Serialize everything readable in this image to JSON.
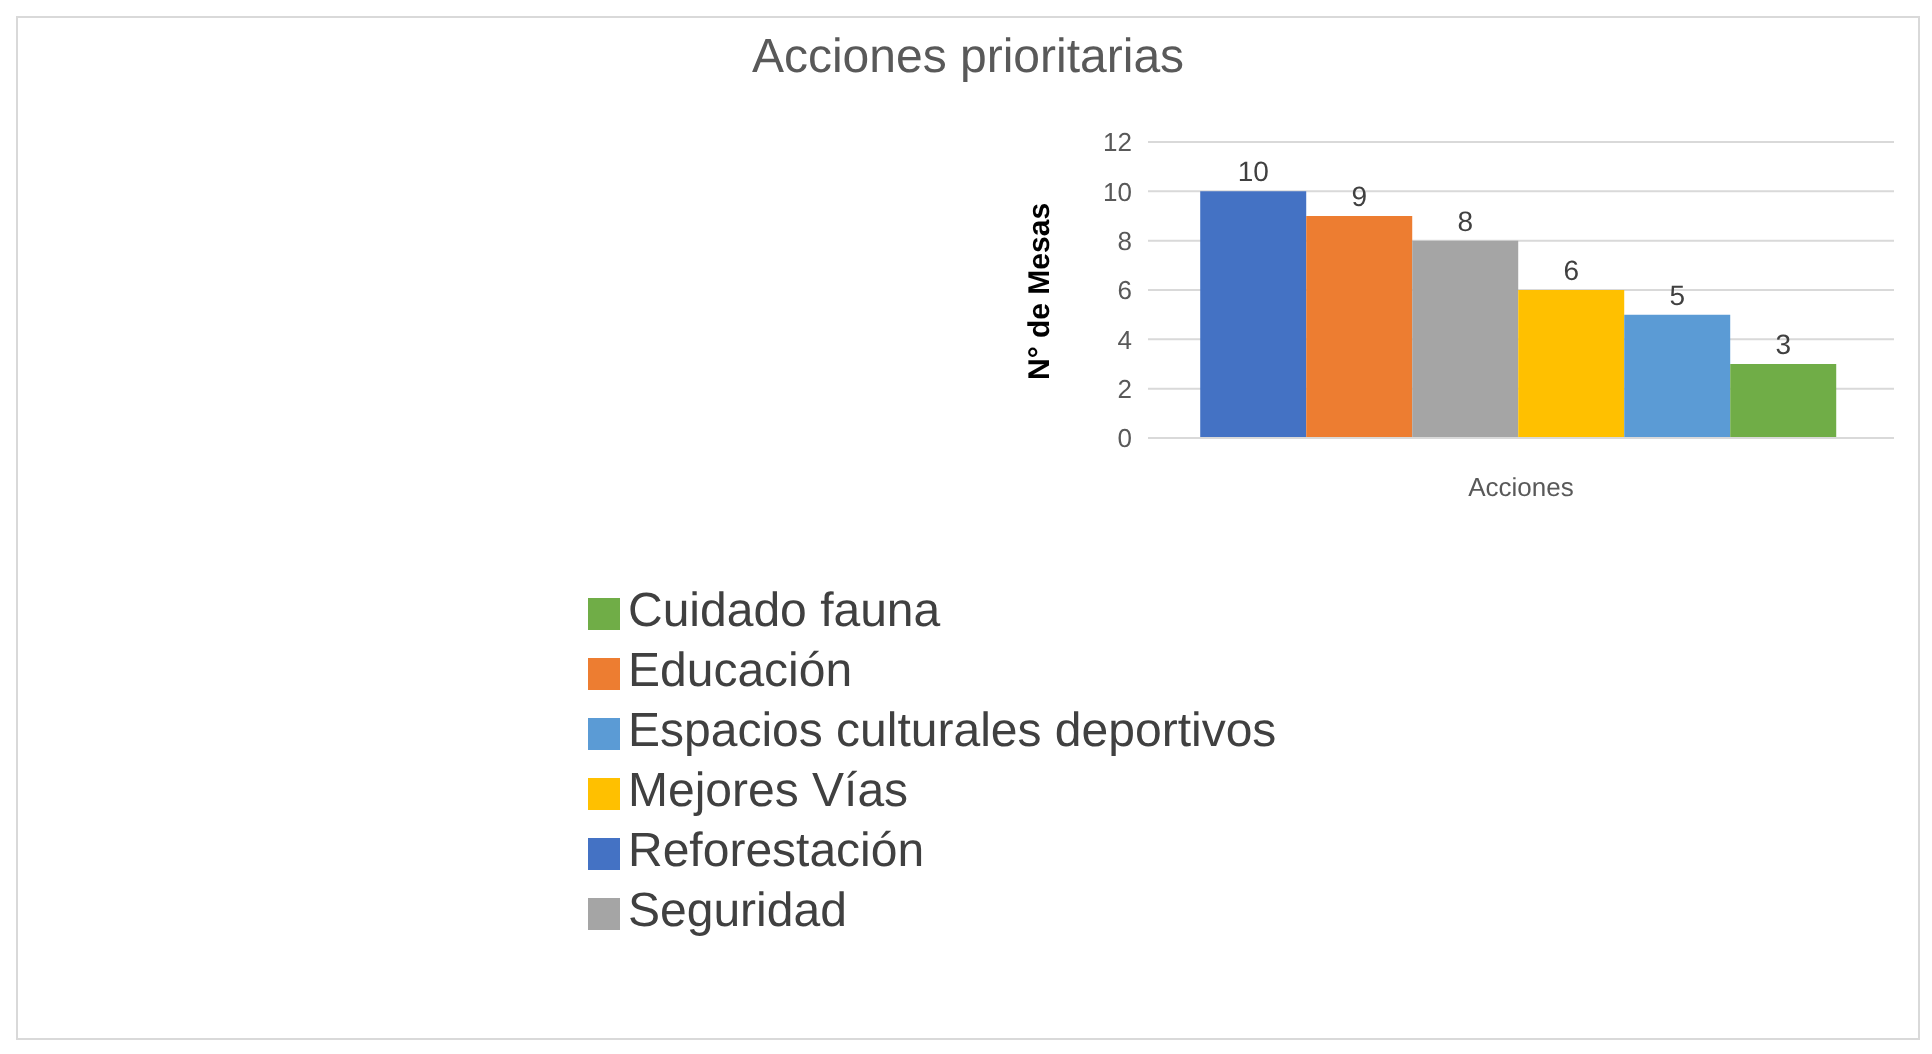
{
  "chart_data": {
    "type": "bar",
    "title": "Acciones prioritarias",
    "ylabel": "N° de Mesas",
    "categories": [
      "Acciones"
    ],
    "series": [
      {
        "name": "Reforestación",
        "color": "#4472c4",
        "values": [
          10
        ]
      },
      {
        "name": "Educación",
        "color": "#ed7d31",
        "values": [
          9
        ]
      },
      {
        "name": "Seguridad",
        "color": "#a5a5a5",
        "values": [
          8
        ]
      },
      {
        "name": "Mejores Vías",
        "color": "#ffc000",
        "values": [
          6
        ]
      },
      {
        "name": "Espacios culturales deportivos",
        "color": "#5b9bd5",
        "values": [
          5
        ]
      },
      {
        "name": "Cuidado fauna",
        "color": "#70ad47",
        "values": [
          3
        ]
      }
    ],
    "ylim": [
      0,
      12
    ],
    "yticks": [
      0,
      2,
      4,
      6,
      8,
      10,
      12
    ],
    "grid": "y",
    "legend": "bottom",
    "data_labels": true
  }
}
